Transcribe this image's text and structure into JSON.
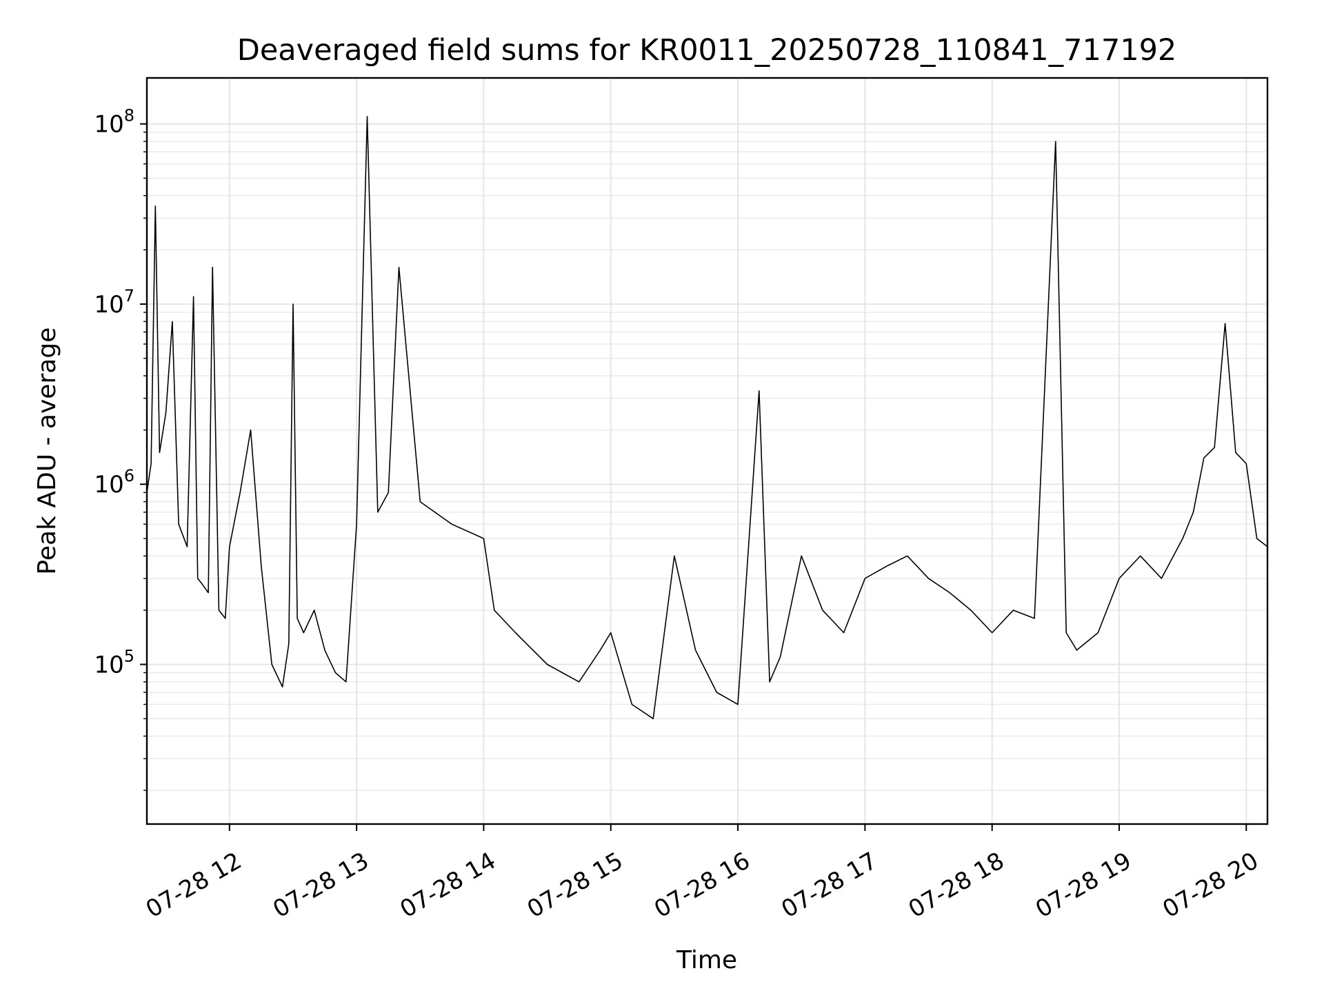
{
  "chart_data": {
    "type": "line",
    "title": "Deaveraged field sums for KR0011_20250728_110841_717192",
    "xlabel": "Time",
    "ylabel": "Peak ADU - average",
    "yscale": "log",
    "grid": true,
    "xlim": [
      "2025-07-28 11:21",
      "2025-07-28 20:10"
    ],
    "ylim": [
      13000,
      180000000
    ],
    "x_tick_labels": [
      "07-28 12",
      "07-28 13",
      "07-28 14",
      "07-28 15",
      "07-28 16",
      "07-28 17",
      "07-28 18",
      "07-28 19",
      "07-28 20"
    ],
    "y_tick_labels": [
      {
        "base": "10",
        "exp": "5"
      },
      {
        "base": "10",
        "exp": "6"
      },
      {
        "base": "10",
        "exp": "7"
      },
      {
        "base": "10",
        "exp": "8"
      }
    ],
    "line_color": "#000000",
    "series": [
      {
        "x": [
          "11:21",
          "11:23",
          "11:25",
          "11:27",
          "11:30",
          "11:33",
          "11:36",
          "11:40",
          "11:43",
          "11:45",
          "11:47",
          "11:50",
          "11:52",
          "11:55",
          "11:58",
          "12:00",
          "12:05",
          "12:10",
          "12:15",
          "12:20",
          "12:25",
          "12:28",
          "12:30",
          "12:32",
          "12:35",
          "12:40",
          "12:45",
          "12:50",
          "12:55",
          "13:00",
          "13:05",
          "13:10",
          "13:15",
          "13:20",
          "13:30",
          "13:45",
          "14:00",
          "14:05",
          "14:15",
          "14:30",
          "14:45",
          "14:55",
          "15:00",
          "15:10",
          "15:20",
          "15:30",
          "15:40",
          "15:50",
          "16:00",
          "16:10",
          "16:15",
          "16:20",
          "16:30",
          "16:40",
          "16:50",
          "17:00",
          "17:10",
          "17:20",
          "17:30",
          "17:40",
          "17:50",
          "18:00",
          "18:10",
          "18:20",
          "18:30",
          "18:35",
          "18:40",
          "18:50",
          "19:00",
          "19:10",
          "19:20",
          "19:30",
          "19:35",
          "19:40",
          "19:45",
          "19:50",
          "19:55",
          "20:00",
          "20:05",
          "20:10"
        ],
        "y": [
          900000,
          1300000,
          35000000,
          1500000,
          2500000,
          8000000,
          600000,
          450000,
          11000000,
          300000,
          280000,
          250000,
          16000000,
          200000,
          180000,
          450000,
          900000,
          2000000,
          350000,
          100000,
          75000,
          130000,
          10000000,
          180000,
          150000,
          200000,
          120000,
          90000,
          80000,
          600000,
          110000000,
          700000,
          900000,
          16000000,
          800000,
          600000,
          500000,
          200000,
          150000,
          100000,
          80000,
          120000,
          150000,
          60000,
          50000,
          400000,
          120000,
          70000,
          60000,
          3300000,
          80000,
          110000,
          400000,
          200000,
          150000,
          300000,
          350000,
          400000,
          300000,
          250000,
          200000,
          150000,
          200000,
          180000,
          80000000,
          150000,
          120000,
          150000,
          300000,
          400000,
          300000,
          500000,
          700000,
          1400000,
          1600000,
          7800000,
          1500000,
          1300000,
          500000,
          450000
        ]
      }
    ]
  }
}
